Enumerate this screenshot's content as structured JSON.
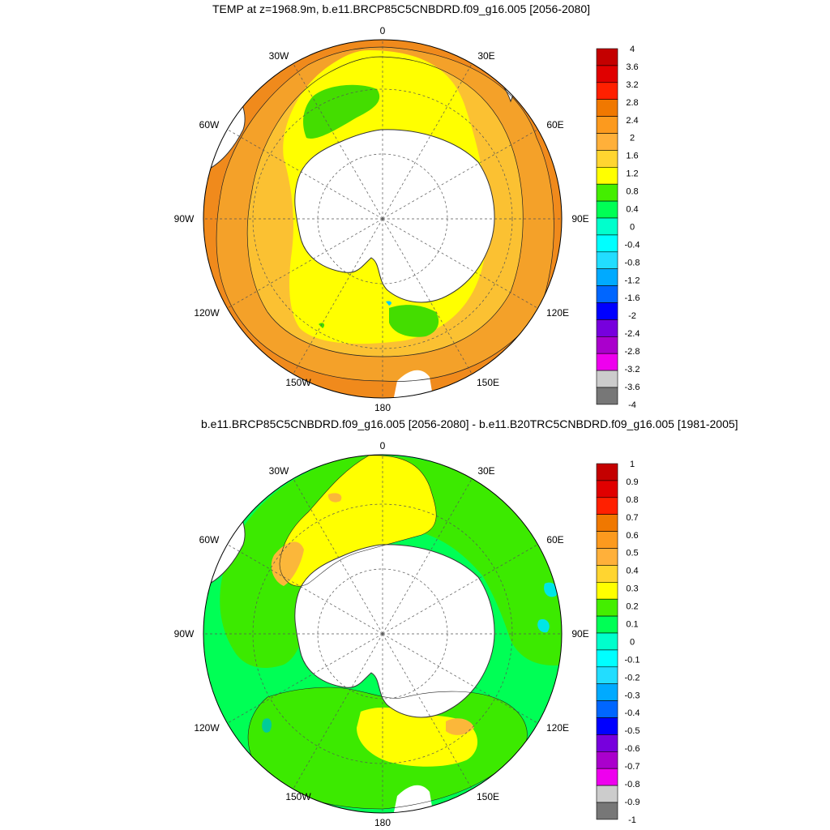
{
  "colors": {
    "land": "#ffffff",
    "coast": "#333333",
    "grid": "#555555",
    "panel1": {
      "orange_dark": "#f08a1c",
      "orange": "#f4a129",
      "orange_light": "#fbc132",
      "yellow": "#ffff00",
      "green": "#44dd00"
    },
    "panel2": {
      "green_base": "#00ff55",
      "green_light": "#3cea00",
      "yellow": "#ffff00",
      "orange_light": "#fbb73a",
      "cyan": "#00e6e6",
      "teal": "#00cc99"
    }
  },
  "panels": [
    {
      "title": "TEMP at z=1968.9m, b.e11.BRCP85C5CNBDRD.f09_g16.005 [2056-2080]",
      "lon_labels": {
        "top": "0",
        "tr": "30E",
        "r1": "60E",
        "r2": "90E",
        "r3": "120E",
        "br": "150E",
        "bottom": "180",
        "bl": "150W",
        "l3": "120W",
        "l2": "90W",
        "l1": "60W",
        "tl": "30W"
      },
      "colorbar": {
        "labels": [
          "4",
          "3.6",
          "3.2",
          "2.8",
          "2.4",
          "2",
          "1.6",
          "1.2",
          "0.8",
          "0.4",
          "0",
          "-0.4",
          "-0.8",
          "-1.2",
          "-1.6",
          "-2",
          "-2.4",
          "-2.8",
          "-3.2",
          "-3.6",
          "-4"
        ],
        "colors": [
          "#c40000",
          "#e00000",
          "#ff2000",
          "#f07800",
          "#fc9a1e",
          "#ffb03a",
          "#ffd530",
          "#ffff00",
          "#44ee00",
          "#00ff55",
          "#00ffcc",
          "#00ffff",
          "#22ddff",
          "#00aaff",
          "#0066ff",
          "#0000ff",
          "#7700dd",
          "#aa00cc",
          "#ee00ee",
          "#cccccc",
          "#777777"
        ]
      }
    },
    {
      "title": "b.e11.BRCP85C5CNBDRD.f09_g16.005 [2056-2080] - b.e11.B20TRC5CNBDRD.f09_g16.005 [1981-2005]",
      "lon_labels": {
        "top": "0",
        "tr": "30E",
        "r1": "60E",
        "r2": "90E",
        "r3": "120E",
        "br": "150E",
        "bottom": "180",
        "bl": "150W",
        "l3": "120W",
        "l2": "90W",
        "l1": "60W",
        "tl": "30W"
      },
      "colorbar": {
        "labels": [
          "1",
          "0.9",
          "0.8",
          "0.7",
          "0.6",
          "0.5",
          "0.4",
          "0.3",
          "0.2",
          "0.1",
          "0",
          "-0.1",
          "-0.2",
          "-0.3",
          "-0.4",
          "-0.5",
          "-0.6",
          "-0.7",
          "-0.8",
          "-0.9",
          "-1"
        ],
        "colors": [
          "#c40000",
          "#e00000",
          "#ff2000",
          "#f07800",
          "#fc9a1e",
          "#ffb03a",
          "#ffd530",
          "#ffff00",
          "#44ee00",
          "#00ff55",
          "#00ffcc",
          "#00ffff",
          "#22ddff",
          "#00aaff",
          "#0066ff",
          "#0000ff",
          "#7700dd",
          "#aa00cc",
          "#ee00ee",
          "#cccccc",
          "#777777"
        ]
      }
    }
  ]
}
